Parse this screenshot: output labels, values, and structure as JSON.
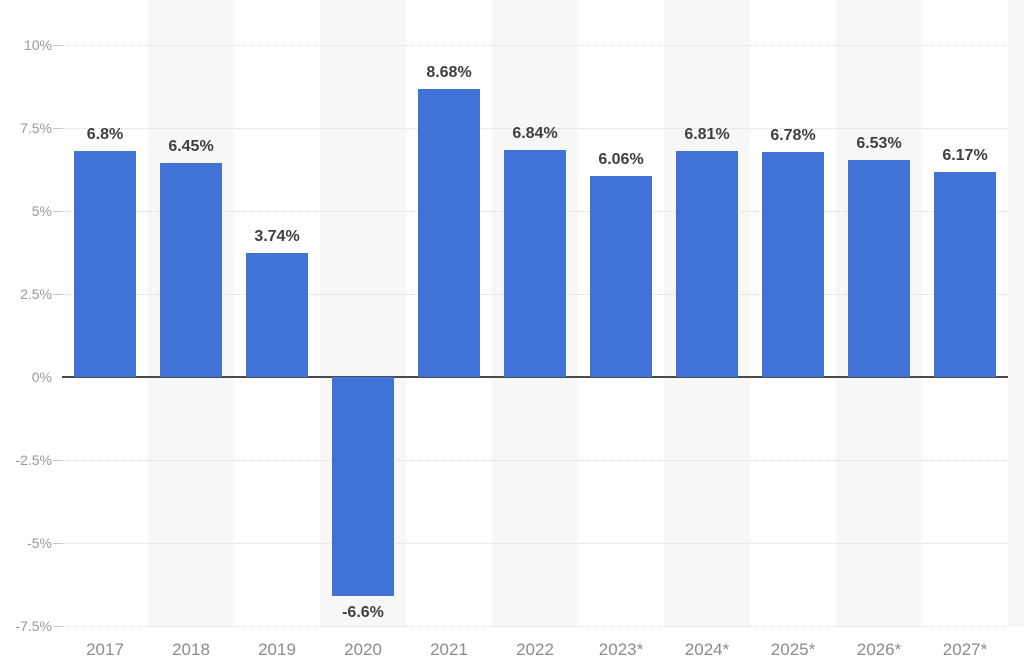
{
  "chart_data": {
    "type": "bar",
    "title": "",
    "xlabel": "",
    "ylabel": "",
    "categories": [
      "2017",
      "2018",
      "2019",
      "2020",
      "2021",
      "2022",
      "2023*",
      "2024*",
      "2025*",
      "2026*",
      "2027*"
    ],
    "values": [
      6.8,
      6.45,
      3.74,
      -6.6,
      8.68,
      6.84,
      6.06,
      6.81,
      6.78,
      6.53,
      6.17
    ],
    "value_labels": [
      "6.8%",
      "6.45%",
      "3.74%",
      "-6.6%",
      "8.68%",
      "6.84%",
      "6.06%",
      "6.81%",
      "6.78%",
      "6.53%",
      "6.17%"
    ],
    "y_tick_labels": [
      "10%",
      "7.5%",
      "5%",
      "2.5%",
      "0%",
      "-2.5%",
      "-5%",
      "-7.5%"
    ],
    "y_tick_values": [
      10,
      7.5,
      5,
      2.5,
      0,
      -2.5,
      -5,
      -7.5
    ],
    "ylim": [
      -7.5,
      10
    ],
    "grid": "horizontal-dotted",
    "legend": "none",
    "plot_background_stripes": "alternating-vertical",
    "colors": {
      "bar": "#4172d8",
      "stripe": "#f7f7f7",
      "gridline": "#d9d9d9",
      "zero_line": "#4a4a4a",
      "value_label": "#3f3f3f",
      "x_tick_label": "#8c8c8c",
      "y_tick_label": "#9a9a9a",
      "background": "#ffffff"
    }
  }
}
